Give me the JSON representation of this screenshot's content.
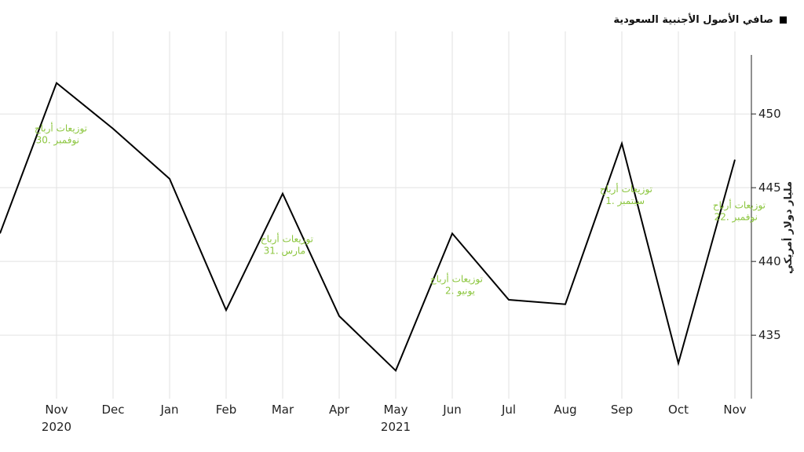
{
  "chart_data": {
    "type": "line",
    "title": "",
    "legend": {
      "label": "صافي الأصول الأجنبية السعودية",
      "placement": "top-right"
    },
    "xlabel": "",
    "ylabel": "مليار دولار أمريكي",
    "x": [
      "Oct 2020",
      "Nov 2020",
      "Dec 2020",
      "Jan 2021",
      "Feb 2021",
      "Mar 2021",
      "Apr 2021",
      "May 2021",
      "Jun 2021",
      "Jul 2021",
      "Aug 2021",
      "Sep 2021",
      "Oct 2021",
      "Nov 2021"
    ],
    "x_tick_labels": [
      "Nov",
      "Dec",
      "Jan",
      "Feb",
      "Mar",
      "Apr",
      "May",
      "Jun",
      "Jul",
      "Aug",
      "Sep",
      "Oct",
      "Nov"
    ],
    "x_year_labels": [
      {
        "label": "2020",
        "month": "Nov 2020"
      },
      {
        "label": "2021",
        "month": "May 2021"
      }
    ],
    "series": [
      {
        "color": "#000000",
        "values": [
          441.9,
          452.1,
          449.0,
          445.6,
          436.7,
          444.6,
          436.3,
          432.6,
          441.9,
          437.4,
          437.1,
          448.0,
          433.1,
          446.9
        ]
      }
    ],
    "ylim": [
      430.7,
      454.0
    ],
    "y_ticks": [
      435,
      440,
      445,
      450
    ],
    "y_axis_side": "right",
    "grid": true,
    "annotations": [
      {
        "month": "Nov 2020",
        "line1": "توزيعات أرباح",
        "line2": "30. نوفمبر"
      },
      {
        "month": "Mar 2021",
        "line1": "توزيعات أرباح",
        "line2": "31. مارس"
      },
      {
        "month": "Jun 2021",
        "line1": "توزيعات أرباح",
        "line2": "2. يونيو"
      },
      {
        "month": "Sep 2021",
        "line1": "توزيعات أرباح",
        "line2": "1. سبتمبر"
      },
      {
        "month": "Nov 2021",
        "line1": "توزيعات أرباح",
        "line2": "22. نوفمبر"
      }
    ],
    "annotation_color": "#8cc63f"
  }
}
